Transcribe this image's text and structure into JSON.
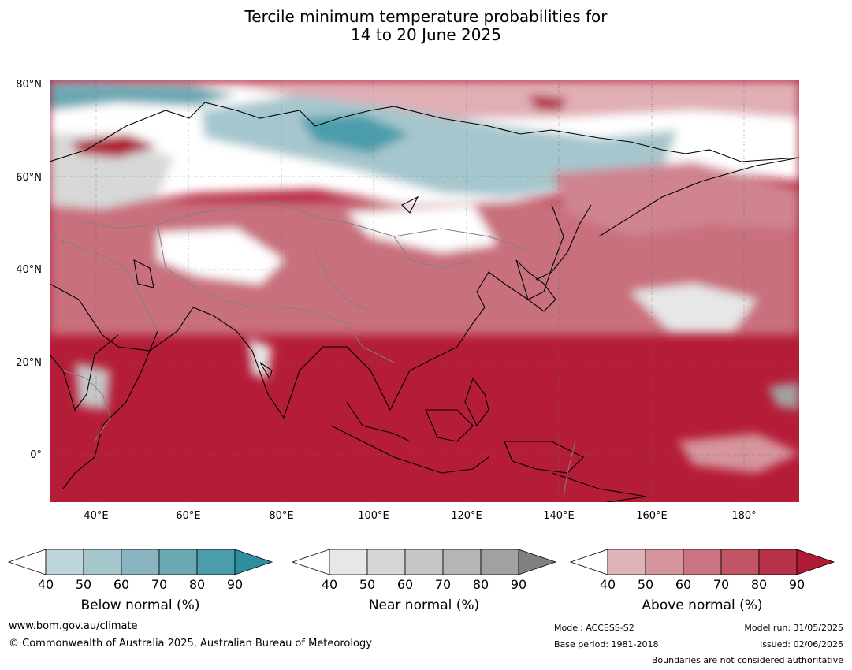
{
  "title": {
    "line1": "Tercile minimum temperature probabilities for",
    "line2": "14 to 20 June 2025"
  },
  "map": {
    "projection": "equirectangular",
    "lon_range": [
      30,
      192
    ],
    "lat_range": [
      -10,
      80
    ],
    "lat_ticks": [
      "80°N",
      "60°N",
      "40°N",
      "20°N",
      "0°"
    ],
    "lon_ticks": [
      "40°E",
      "60°E",
      "80°E",
      "100°E",
      "120°E",
      "140°E",
      "160°E",
      "180°"
    ],
    "dominant_category": "Above normal"
  },
  "colorbars": [
    {
      "name": "below",
      "label": "Below normal (%)",
      "ticks": [
        "40",
        "50",
        "60",
        "70",
        "80",
        "90"
      ],
      "colors": [
        "#ffffff",
        "#bfd5dc",
        "#a5c6cd",
        "#88b5bf",
        "#6aa8b3",
        "#4b9dab",
        "#2f8da0"
      ]
    },
    {
      "name": "near",
      "label": "Near normal (%)",
      "ticks": [
        "40",
        "50",
        "60",
        "70",
        "80",
        "90"
      ],
      "colors": [
        "#ffffff",
        "#e7e7e7",
        "#d6d6d6",
        "#c6c6c6",
        "#b5b5b5",
        "#a1a1a1",
        "#808080"
      ]
    },
    {
      "name": "above",
      "label": "Above normal (%)",
      "ticks": [
        "40",
        "50",
        "60",
        "70",
        "80",
        "90"
      ],
      "colors": [
        "#ffffff",
        "#deb4b9",
        "#d6959c",
        "#ca7581",
        "#c15565",
        "#b83349",
        "#b01a35"
      ]
    }
  ],
  "footer": {
    "website": "www.bom.gov.au/climate",
    "copyright": "© Commonwealth of Australia 2025, Australian Bureau of Meteorology",
    "model": "Model: ACCESS-S2",
    "base_period": "Base period: 1981-2018",
    "model_run": "Model run: 31/05/2025",
    "issued": "Issued: 02/06/2025",
    "disclaimer": "Boundaries are not considered authoritative"
  }
}
